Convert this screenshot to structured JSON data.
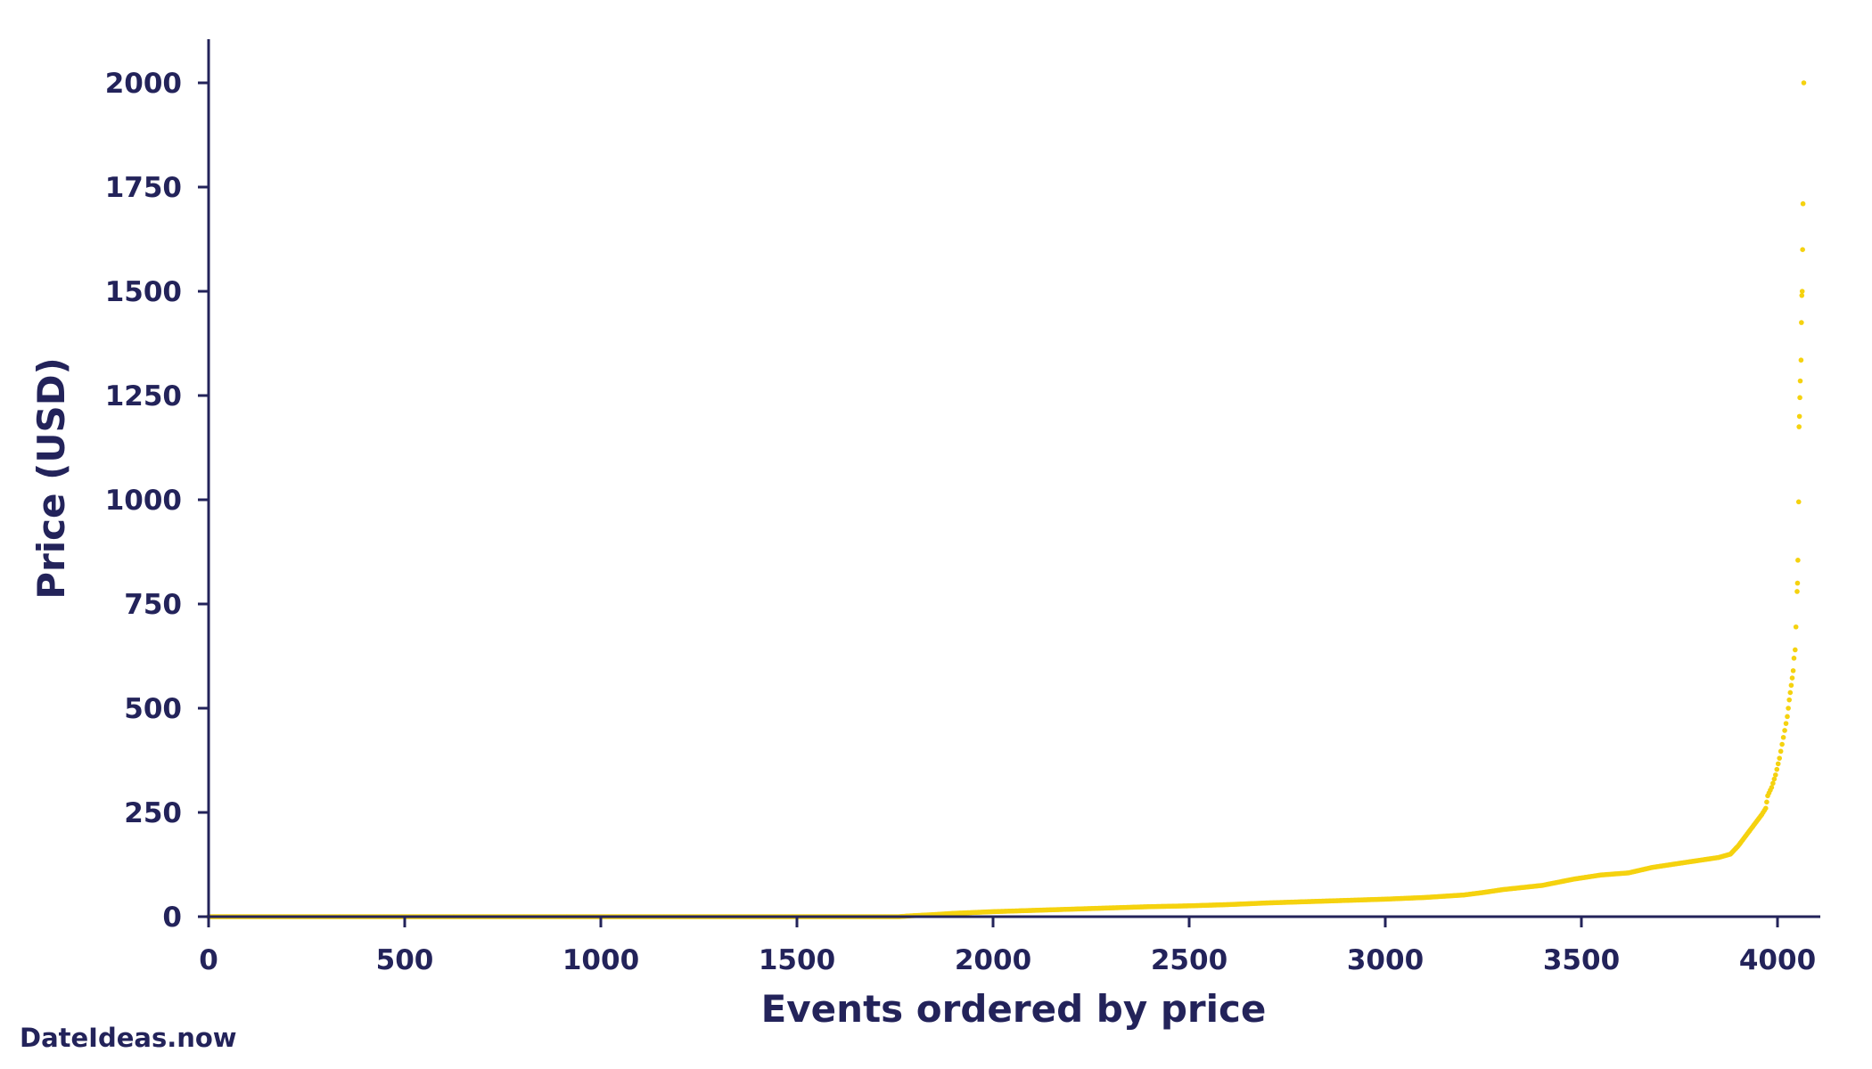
{
  "chart_data": {
    "type": "scatter",
    "xlabel": "Events ordered by price",
    "ylabel": "Price (USD)",
    "xlim": [
      0,
      4060
    ],
    "ylim": [
      0,
      2100
    ],
    "xticks": [
      0,
      500,
      1000,
      1500,
      2000,
      2500,
      3000,
      3500,
      4000
    ],
    "yticks": [
      0,
      250,
      500,
      750,
      1000,
      1250,
      1500,
      1750,
      2000
    ],
    "grid": false,
    "series": [
      {
        "color": "#f5d20f",
        "points": [
          [
            0,
            0
          ],
          [
            1760,
            0
          ],
          [
            1790,
            2
          ],
          [
            1850,
            5
          ],
          [
            1900,
            8
          ],
          [
            1950,
            10
          ],
          [
            2000,
            12
          ],
          [
            2100,
            15
          ],
          [
            2200,
            18
          ],
          [
            2300,
            21
          ],
          [
            2400,
            24
          ],
          [
            2500,
            26
          ],
          [
            2600,
            29
          ],
          [
            2700,
            33
          ],
          [
            2800,
            36
          ],
          [
            2900,
            39
          ],
          [
            3000,
            42
          ],
          [
            3100,
            46
          ],
          [
            3200,
            52
          ],
          [
            3250,
            58
          ],
          [
            3300,
            65
          ],
          [
            3400,
            75
          ],
          [
            3480,
            90
          ],
          [
            3550,
            100
          ],
          [
            3620,
            105
          ],
          [
            3680,
            118
          ],
          [
            3750,
            128
          ],
          [
            3800,
            135
          ],
          [
            3850,
            142
          ],
          [
            3880,
            150
          ],
          [
            3900,
            170
          ],
          [
            3920,
            195
          ],
          [
            3940,
            220
          ],
          [
            3960,
            245
          ],
          [
            3970,
            260
          ],
          [
            3975,
            290
          ],
          [
            3985,
            310
          ],
          [
            3995,
            340
          ],
          [
            4005,
            380
          ],
          [
            4015,
            430
          ],
          [
            4025,
            480
          ],
          [
            4030,
            520
          ],
          [
            4035,
            555
          ],
          [
            4040,
            590
          ],
          [
            4042,
            620
          ],
          [
            4045,
            640
          ],
          [
            4047,
            695
          ],
          [
            4050,
            780
          ],
          [
            4051,
            800
          ],
          [
            4052,
            855
          ],
          [
            4054,
            995
          ],
          [
            4055,
            1175
          ],
          [
            4056,
            1200
          ],
          [
            4057,
            1245
          ],
          [
            4058,
            1285
          ],
          [
            4060,
            1335
          ],
          [
            4061,
            1425
          ],
          [
            4062,
            1490
          ],
          [
            4063,
            1500
          ],
          [
            4064,
            1600
          ],
          [
            4065,
            1710
          ],
          [
            4067,
            2000
          ]
        ]
      }
    ]
  },
  "watermark": "DateIdeas.now",
  "colors": {
    "axis": "#23235a",
    "text": "#23235a",
    "points": "#f5d20f"
  }
}
